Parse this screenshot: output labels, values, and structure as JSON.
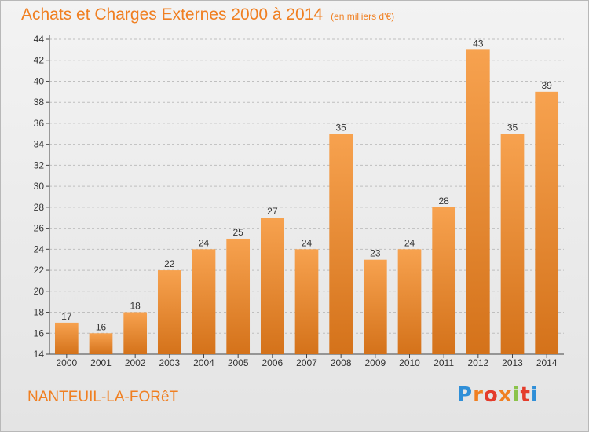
{
  "header": {
    "title": "Achats et Charges Externes 2000 à 2014",
    "subtitle": "(en milliers d'€)"
  },
  "footer": {
    "location": "NANTEUIL-LA-FORêT",
    "logo": "Proxiti"
  },
  "colors": {
    "accent": "#f07f21",
    "bar_light": "#f7a24f",
    "bar_dark": "#d4721a"
  },
  "chart_data": {
    "type": "bar",
    "title": "Achats et Charges Externes 2000 à 2014",
    "subtitle": "(en milliers d'€)",
    "xlabel": "",
    "ylabel": "",
    "categories": [
      "2000",
      "2001",
      "2002",
      "2003",
      "2004",
      "2005",
      "2006",
      "2007",
      "2008",
      "2009",
      "2010",
      "2011",
      "2012",
      "2013",
      "2014"
    ],
    "values": [
      17,
      16,
      18,
      22,
      24,
      25,
      27,
      24,
      35,
      23,
      24,
      28,
      43,
      35,
      39
    ],
    "ylim": [
      14,
      44
    ],
    "yticks": [
      14,
      16,
      18,
      20,
      22,
      24,
      26,
      28,
      30,
      32,
      34,
      36,
      38,
      40,
      42,
      44
    ],
    "grid": true,
    "legend": "none"
  }
}
